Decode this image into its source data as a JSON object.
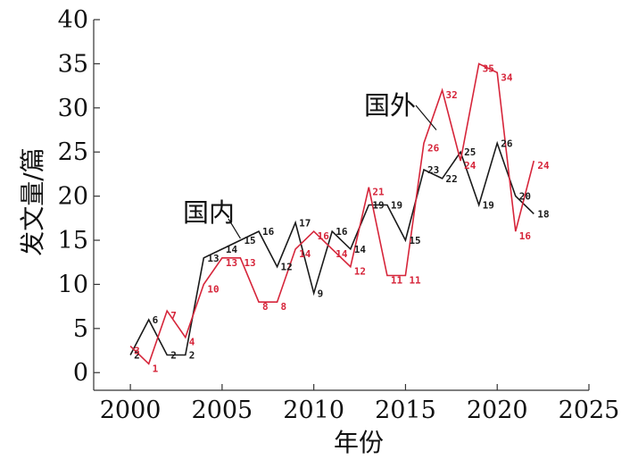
{
  "chart_data": {
    "type": "line",
    "xlabel": "年份",
    "ylabel": "发文量/篇",
    "xlim": [
      1998,
      2025
    ],
    "ylim": [
      -2,
      40
    ],
    "x_ticks": [
      2000,
      2005,
      2010,
      2015,
      2020,
      2025
    ],
    "y_ticks": [
      0,
      5,
      10,
      15,
      20,
      25,
      30,
      35,
      40
    ],
    "grid": false,
    "legend": "none",
    "series": [
      {
        "name": "国内",
        "color": "#1a1a1a",
        "x": [
          2000,
          2001,
          2002,
          2003,
          2004,
          2005,
          2006,
          2007,
          2008,
          2009,
          2010,
          2011,
          2012,
          2013,
          2014,
          2015,
          2016,
          2017,
          2018,
          2019,
          2020,
          2021,
          2022
        ],
        "values": [
          2,
          6,
          2,
          2,
          13,
          14,
          15,
          16,
          12,
          17,
          9,
          16,
          14,
          19,
          19,
          15,
          23,
          22,
          25,
          19,
          26,
          20,
          18
        ]
      },
      {
        "name": "国外",
        "color": "#d6253a",
        "x": [
          2000,
          2001,
          2002,
          2003,
          2004,
          2005,
          2006,
          2007,
          2008,
          2009,
          2010,
          2011,
          2012,
          2013,
          2014,
          2015,
          2016,
          2017,
          2018,
          2019,
          2020,
          2021,
          2022
        ],
        "values": [
          3,
          1,
          7,
          4,
          10,
          13,
          13,
          8,
          8,
          14,
          16,
          14,
          12,
          21,
          11,
          11,
          26,
          32,
          24,
          35,
          34,
          16,
          24
        ]
      }
    ]
  }
}
